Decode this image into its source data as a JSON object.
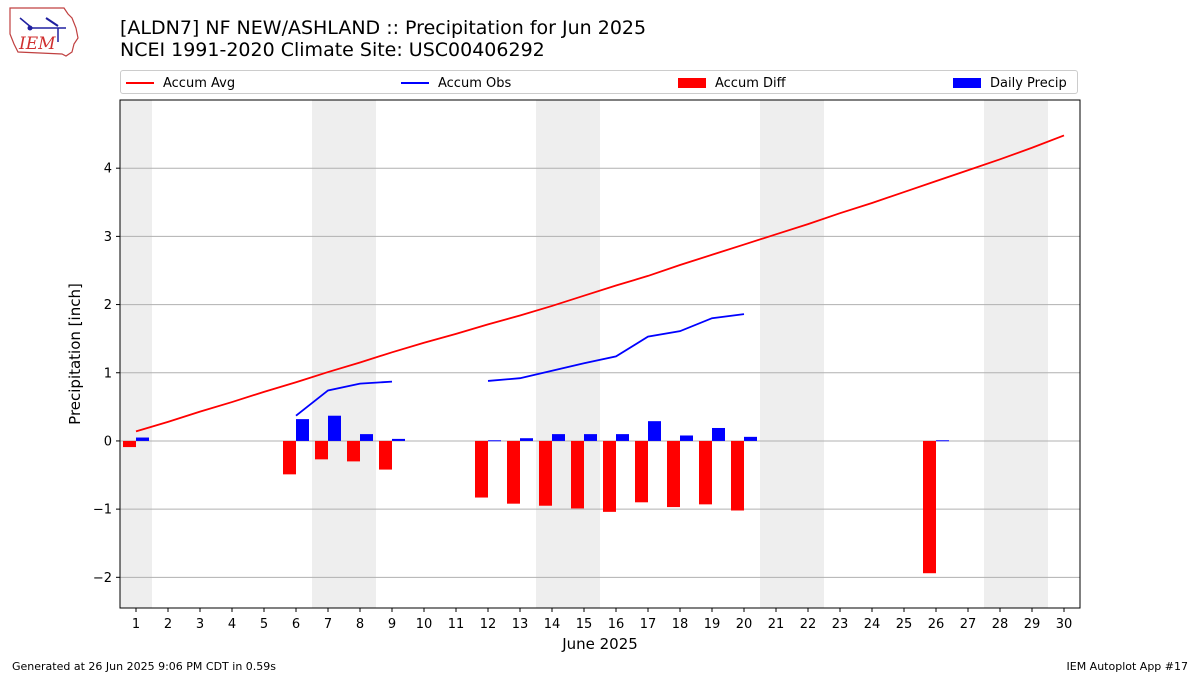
{
  "header": {
    "title_line1": "[ALDN7] NF NEW/ASHLAND :: Precipitation for Jun 2025",
    "title_line2": "NCEI 1991-2020 Climate Site: USC00406292",
    "logo_text": "IEM"
  },
  "legend": {
    "items": [
      {
        "label": "Accum Avg",
        "color": "#ff0000",
        "kind": "line"
      },
      {
        "label": "Accum Obs",
        "color": "#0000ff",
        "kind": "line"
      },
      {
        "label": "Accum Diff",
        "color": "#ff0000",
        "kind": "bar"
      },
      {
        "label": "Daily Precip",
        "color": "#0000ff",
        "kind": "bar"
      }
    ],
    "placement": "top"
  },
  "footer": {
    "left": "Generated at 26 Jun 2025 9:06 PM CDT in 0.59s",
    "right": "IEM Autoplot App #17"
  },
  "chart_data": {
    "type": "bar",
    "title": "[ALDN7] NF NEW/ASHLAND :: Precipitation for Jun 2025",
    "subtitle": "NCEI 1991-2020 Climate Site: USC00406292",
    "xlabel": "June 2025",
    "ylabel": "Precipitation [inch]",
    "xlim": [
      0.5,
      30.5
    ],
    "ylim": [
      -2.45,
      5.0
    ],
    "yticks": [
      -2,
      -1,
      0,
      1,
      2,
      3,
      4
    ],
    "ytick_labels": [
      "−2",
      "−1",
      "0",
      "1",
      "2",
      "3",
      "4"
    ],
    "x": [
      1,
      2,
      3,
      4,
      5,
      6,
      7,
      8,
      9,
      10,
      11,
      12,
      13,
      14,
      15,
      16,
      17,
      18,
      19,
      20,
      21,
      22,
      23,
      24,
      25,
      26,
      27,
      28,
      29,
      30
    ],
    "weekend_bands": [
      [
        0.5,
        1.5
      ],
      [
        6.5,
        8.5
      ],
      [
        13.5,
        15.5
      ],
      [
        20.5,
        22.5
      ],
      [
        27.5,
        29.5
      ]
    ],
    "grid": "y",
    "colors": {
      "avg": "#ff0000",
      "obs": "#0000ff",
      "band": "#eeeeee",
      "grid": "#b0b0b0"
    },
    "series": [
      {
        "name": "Accum Avg",
        "kind": "line",
        "values": [
          0.14,
          0.28,
          0.43,
          0.57,
          0.72,
          0.86,
          1.01,
          1.15,
          1.3,
          1.44,
          1.57,
          1.71,
          1.84,
          1.98,
          2.13,
          2.28,
          2.42,
          2.58,
          2.73,
          2.88,
          3.03,
          3.18,
          3.34,
          3.49,
          3.65,
          3.81,
          3.97,
          4.13,
          4.3,
          4.48
        ]
      },
      {
        "name": "Accum Obs",
        "kind": "line",
        "values": [
          null,
          null,
          null,
          null,
          null,
          0.37,
          0.74,
          0.84,
          0.87,
          null,
          null,
          0.88,
          0.92,
          1.03,
          1.14,
          1.24,
          1.53,
          1.61,
          1.8,
          1.86,
          null,
          null,
          null,
          null,
          null,
          null,
          null,
          null,
          null,
          null
        ]
      },
      {
        "name": "Accum Diff",
        "kind": "bar",
        "values": [
          -0.09,
          null,
          null,
          null,
          null,
          -0.49,
          -0.27,
          -0.3,
          -0.42,
          null,
          null,
          -0.83,
          -0.92,
          -0.95,
          -0.99,
          -1.04,
          -0.9,
          -0.97,
          -0.93,
          -1.02,
          null,
          null,
          null,
          null,
          null,
          -1.94,
          null,
          null,
          null,
          null
        ]
      },
      {
        "name": "Daily Precip",
        "kind": "bar",
        "values": [
          0.05,
          null,
          null,
          null,
          null,
          0.32,
          0.37,
          0.1,
          0.03,
          null,
          null,
          0.01,
          0.04,
          0.1,
          0.1,
          0.1,
          0.29,
          0.08,
          0.19,
          0.06,
          null,
          null,
          null,
          null,
          null,
          0.01,
          null,
          null,
          null,
          null
        ]
      }
    ]
  }
}
